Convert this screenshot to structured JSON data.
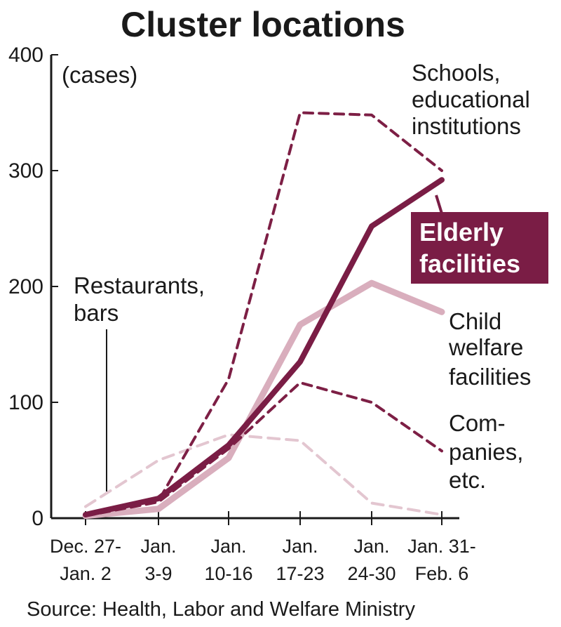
{
  "chart_data": {
    "type": "line",
    "title": "Cluster locations",
    "unit_label": "(cases)",
    "ylim": [
      0,
      400
    ],
    "yticks": [
      "0",
      "100",
      "200",
      "300",
      "400"
    ],
    "categories": [
      [
        "Dec. 27-",
        "Jan. 2"
      ],
      [
        "Jan.",
        "3-9"
      ],
      [
        "Jan.",
        "10-16"
      ],
      [
        "Jan.",
        "17-23"
      ],
      [
        "Jan.",
        "24-30"
      ],
      [
        "Jan. 31-",
        "Feb. 6"
      ]
    ],
    "series": [
      {
        "key": "schools",
        "label_lines": [
          "Schools,",
          "educational",
          "institutions"
        ],
        "values": [
          3,
          15,
          120,
          350,
          348,
          300
        ],
        "color": "#7d1f45",
        "style": "dashed"
      },
      {
        "key": "elderly",
        "label_lines": [
          "Elderly",
          "facilities"
        ],
        "values": [
          3,
          17,
          63,
          135,
          252,
          292
        ],
        "color": "#7a1d45",
        "style": "solid-bold",
        "highlight": true
      },
      {
        "key": "child",
        "label_lines": [
          "Child",
          "welfare",
          "facilities"
        ],
        "values": [
          2,
          8,
          52,
          167,
          203,
          178
        ],
        "color": "#d9aebd",
        "style": "solid"
      },
      {
        "key": "companies",
        "label_lines": [
          "Com-",
          "panies,",
          "etc."
        ],
        "values": [
          2,
          14,
          60,
          117,
          100,
          58
        ],
        "color": "#7d1f45",
        "style": "dashed"
      },
      {
        "key": "restaurants",
        "label_lines": [
          "Restaurants,",
          "bars"
        ],
        "values": [
          10,
          50,
          72,
          67,
          13,
          3
        ],
        "color": "#e3c6d0",
        "style": "dashed-light"
      }
    ],
    "grid": false,
    "legend": "direct labels"
  },
  "source": "Source: Health, Labor and Welfare Ministry"
}
